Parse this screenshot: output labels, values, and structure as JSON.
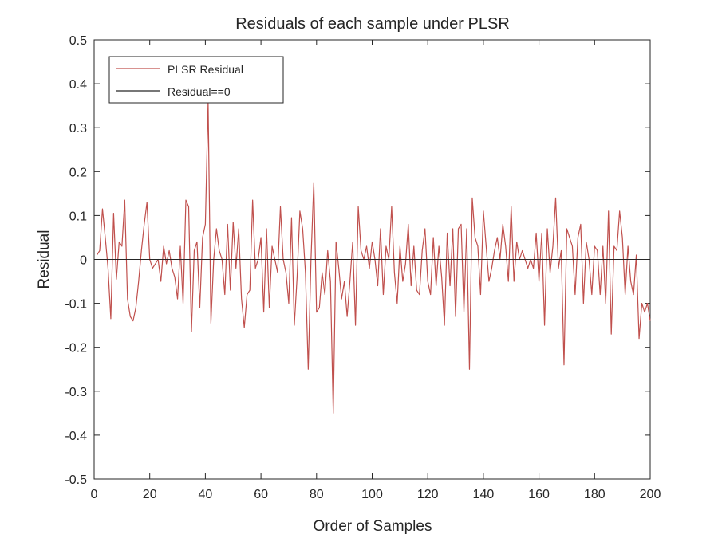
{
  "chart_data": {
    "type": "line",
    "title": "Residuals of each sample under PLSR",
    "xlabel": "Order of Samples",
    "ylabel": "Residual",
    "xlim": [
      0,
      200
    ],
    "ylim": [
      -0.5,
      0.5
    ],
    "xticks": [
      0,
      20,
      40,
      60,
      80,
      100,
      120,
      140,
      160,
      180,
      200
    ],
    "yticks": [
      -0.5,
      -0.4,
      -0.3,
      -0.2,
      -0.1,
      0,
      0.1,
      0.2,
      0.3,
      0.4,
      0.5
    ],
    "xtick_labels": [
      "0",
      "20",
      "40",
      "60",
      "80",
      "100",
      "120",
      "140",
      "160",
      "180",
      "200"
    ],
    "ytick_labels": [
      "-0.5",
      "-0.4",
      "-0.3",
      "-0.2",
      "-0.1",
      "0",
      "0.1",
      "0.2",
      "0.3",
      "0.4",
      "0.5"
    ],
    "grid": false,
    "legend_position": "top-left",
    "series": [
      {
        "name": "PLSR Residual",
        "color": "#c0504d",
        "x": [
          1,
          2,
          3,
          4,
          5,
          6,
          7,
          8,
          9,
          10,
          11,
          12,
          13,
          14,
          15,
          16,
          17,
          18,
          19,
          20,
          21,
          22,
          23,
          24,
          25,
          26,
          27,
          28,
          29,
          30,
          31,
          32,
          33,
          34,
          35,
          36,
          37,
          38,
          39,
          40,
          41,
          42,
          43,
          44,
          45,
          46,
          47,
          48,
          49,
          50,
          51,
          52,
          53,
          54,
          55,
          56,
          57,
          58,
          59,
          60,
          61,
          62,
          63,
          64,
          65,
          66,
          67,
          68,
          69,
          70,
          71,
          72,
          73,
          74,
          75,
          76,
          77,
          78,
          79,
          80,
          81,
          82,
          83,
          84,
          85,
          86,
          87,
          88,
          89,
          90,
          91,
          92,
          93,
          94,
          95,
          96,
          97,
          98,
          99,
          100,
          101,
          102,
          103,
          104,
          105,
          106,
          107,
          108,
          109,
          110,
          111,
          112,
          113,
          114,
          115,
          116,
          117,
          118,
          119,
          120,
          121,
          122,
          123,
          124,
          125,
          126,
          127,
          128,
          129,
          130,
          131,
          132,
          133,
          134,
          135,
          136,
          137,
          138,
          139,
          140,
          141,
          142,
          143,
          144,
          145,
          146,
          147,
          148,
          149,
          150,
          151,
          152,
          153,
          154,
          155,
          156,
          157,
          158,
          159,
          160,
          161,
          162,
          163,
          164,
          165,
          166,
          167,
          168,
          169,
          170,
          171,
          172,
          173,
          174,
          175,
          176,
          177,
          178,
          179,
          180,
          181,
          182,
          183,
          184,
          185,
          186,
          187,
          188,
          189,
          190,
          191,
          192,
          193,
          194,
          195,
          196,
          197,
          198,
          199,
          200
        ],
        "y": [
          0.01,
          0.02,
          0.115,
          0.05,
          -0.02,
          -0.135,
          0.105,
          -0.045,
          0.04,
          0.03,
          0.135,
          -0.09,
          -0.13,
          -0.14,
          -0.11,
          -0.05,
          0.02,
          0.08,
          0.13,
          0.0,
          -0.02,
          -0.01,
          0.0,
          -0.05,
          0.03,
          -0.01,
          0.02,
          -0.02,
          -0.04,
          -0.09,
          0.03,
          -0.1,
          0.135,
          0.12,
          -0.165,
          0.02,
          0.04,
          -0.11,
          0.05,
          0.08,
          0.36,
          -0.145,
          0.0,
          0.07,
          0.02,
          0.0,
          -0.08,
          0.08,
          -0.07,
          0.085,
          -0.02,
          0.07,
          -0.09,
          -0.155,
          -0.08,
          -0.07,
          0.135,
          -0.02,
          0.0,
          0.05,
          -0.12,
          0.07,
          -0.11,
          0.03,
          0.0,
          -0.03,
          0.12,
          0.0,
          -0.03,
          -0.1,
          0.095,
          -0.15,
          -0.04,
          0.11,
          0.07,
          -0.03,
          -0.25,
          0.0,
          0.175,
          -0.12,
          -0.11,
          -0.03,
          -0.08,
          0.02,
          -0.05,
          -0.35,
          0.04,
          -0.02,
          -0.09,
          -0.05,
          -0.13,
          -0.05,
          0.04,
          -0.15,
          0.12,
          0.02,
          0.0,
          0.03,
          -0.02,
          0.04,
          0.0,
          -0.06,
          0.07,
          -0.08,
          0.03,
          0.0,
          0.12,
          -0.03,
          -0.1,
          0.03,
          -0.05,
          -0.01,
          0.08,
          -0.06,
          0.03,
          -0.07,
          -0.08,
          0.02,
          0.07,
          -0.05,
          -0.08,
          0.05,
          -0.06,
          0.03,
          -0.04,
          -0.15,
          0.06,
          -0.06,
          0.07,
          -0.13,
          0.07,
          0.08,
          -0.12,
          0.07,
          -0.25,
          0.14,
          0.05,
          0.03,
          -0.08,
          0.11,
          0.03,
          -0.05,
          -0.02,
          0.02,
          0.05,
          0.0,
          0.08,
          0.03,
          -0.05,
          0.12,
          -0.05,
          0.04,
          0.0,
          0.02,
          0.0,
          -0.02,
          0.0,
          -0.02,
          0.06,
          -0.05,
          0.06,
          -0.15,
          0.07,
          -0.03,
          0.03,
          0.14,
          -0.02,
          0.02,
          -0.24,
          0.07,
          0.05,
          0.03,
          -0.08,
          0.05,
          0.08,
          -0.1,
          0.04,
          0.0,
          -0.08,
          0.03,
          0.02,
          -0.08,
          0.03,
          -0.1,
          0.11,
          -0.17,
          0.03,
          0.02,
          0.11,
          0.05,
          -0.08,
          0.03,
          -0.05,
          -0.08,
          0.01,
          -0.18,
          -0.1,
          -0.12,
          -0.1,
          -0.14
        ]
      },
      {
        "name": "Residual==0",
        "color": "#262626",
        "x": [
          0,
          200
        ],
        "y": [
          0,
          0
        ]
      }
    ]
  }
}
